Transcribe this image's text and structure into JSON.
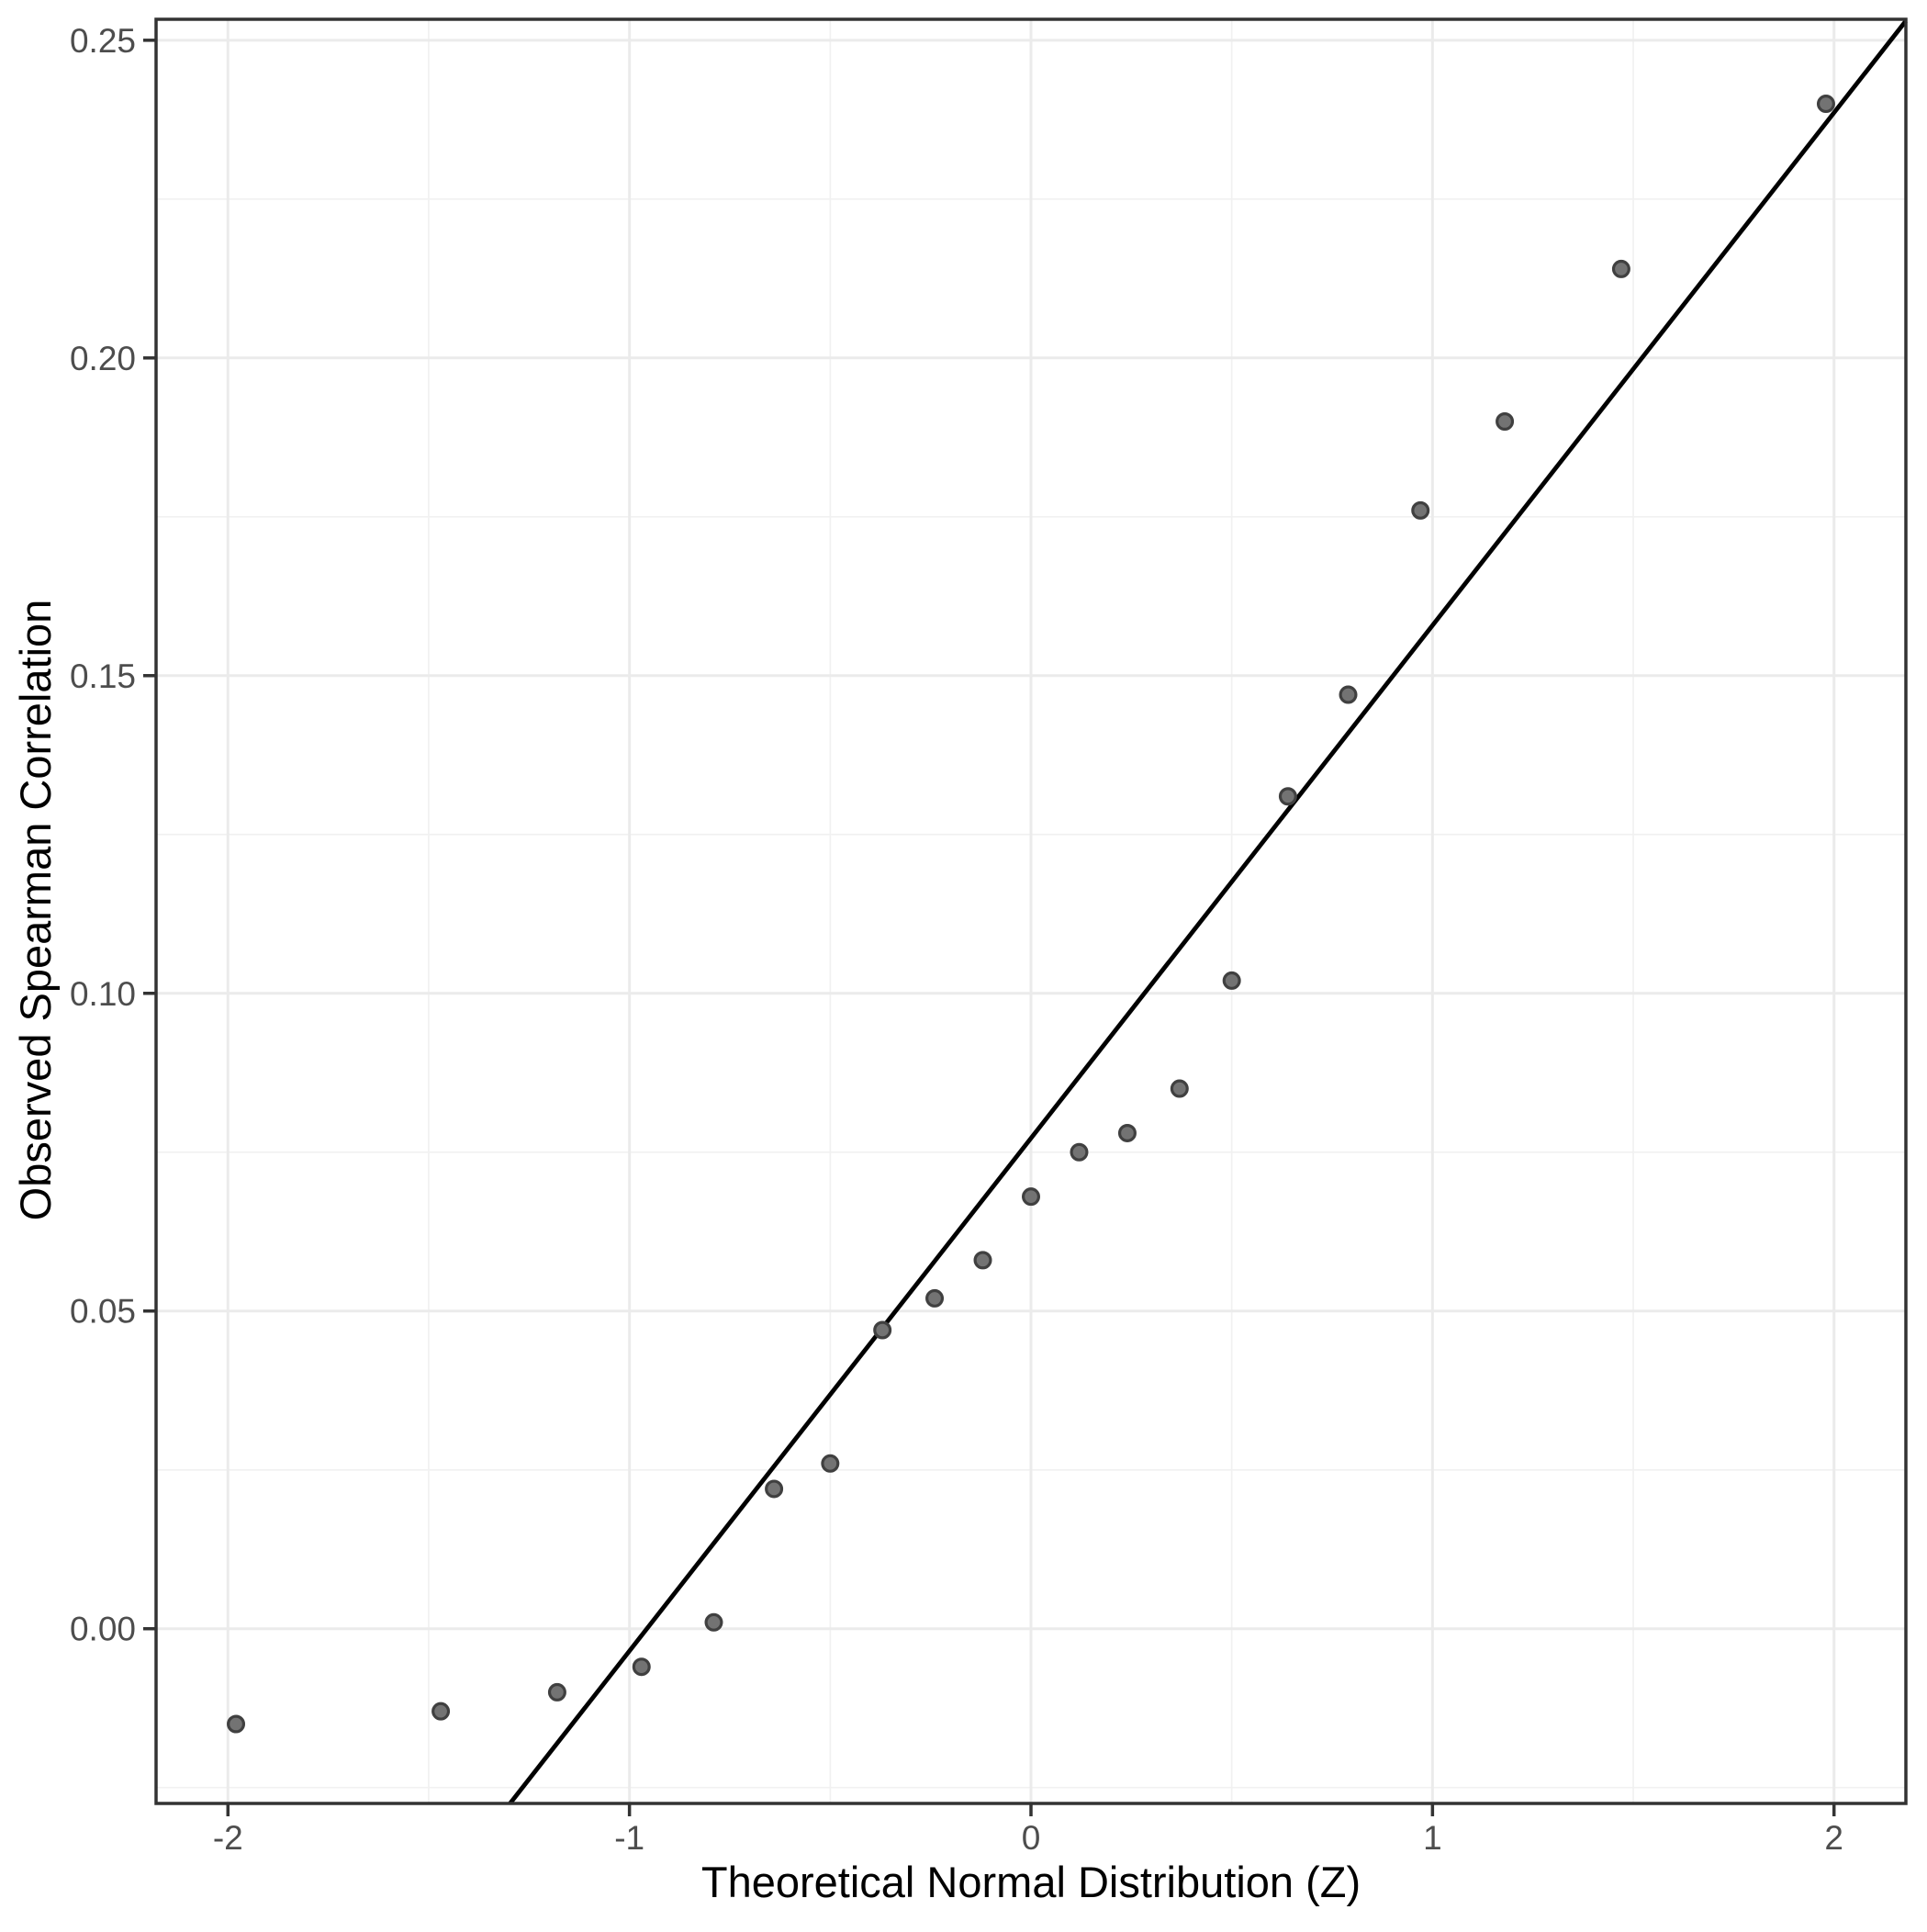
{
  "chart_data": {
    "type": "scatter",
    "title": "",
    "xlabel": "Theoretical Normal Distribution (Z)",
    "ylabel": "Observed Spearman Correlation",
    "xlim": [
      -2.179,
      2.179
    ],
    "ylim": [
      -0.0275,
      0.2533
    ],
    "grid": true,
    "legend": false,
    "x_tick_values": [
      -2,
      -1,
      0,
      1,
      2
    ],
    "x_tick_labels": [
      "-2",
      "-1",
      "0",
      "1",
      "2"
    ],
    "x_minor_ticks": [
      -1.5,
      -0.5,
      0.5,
      1.5
    ],
    "y_tick_values": [
      0.0,
      0.05,
      0.1,
      0.15,
      0.2,
      0.25
    ],
    "y_tick_labels": [
      "0.00",
      "0.05",
      "0.10",
      "0.15",
      "0.20",
      "0.25"
    ],
    "y_minor_ticks": [
      -0.025,
      0.025,
      0.075,
      0.125,
      0.175,
      0.225
    ],
    "points": {
      "x": [
        -1.98,
        -1.47,
        -1.18,
        -0.97,
        -0.79,
        -0.64,
        -0.5,
        -0.37,
        -0.24,
        -0.12,
        0.0,
        0.12,
        0.24,
        0.37,
        0.5,
        0.64,
        0.79,
        0.97,
        1.18,
        1.47,
        1.98
      ],
      "y": [
        -0.015,
        -0.013,
        -0.01,
        -0.006,
        0.001,
        0.022,
        0.026,
        0.047,
        0.052,
        0.058,
        0.068,
        0.075,
        0.078,
        0.085,
        0.102,
        0.131,
        0.147,
        0.176,
        0.19,
        0.214,
        0.24
      ]
    },
    "reference_line": {
      "slope": 0.0807,
      "intercept": 0.0772
    },
    "colors": {
      "point_fill": "#737373",
      "point_stroke": "#404040",
      "line": "#000000",
      "grid_major": "#ebebeb",
      "grid_minor": "#f1f1f1",
      "panel_border": "#333333",
      "tick_mark": "#333333",
      "tick_text": "#4d4d4d",
      "background": "#ffffff"
    }
  }
}
